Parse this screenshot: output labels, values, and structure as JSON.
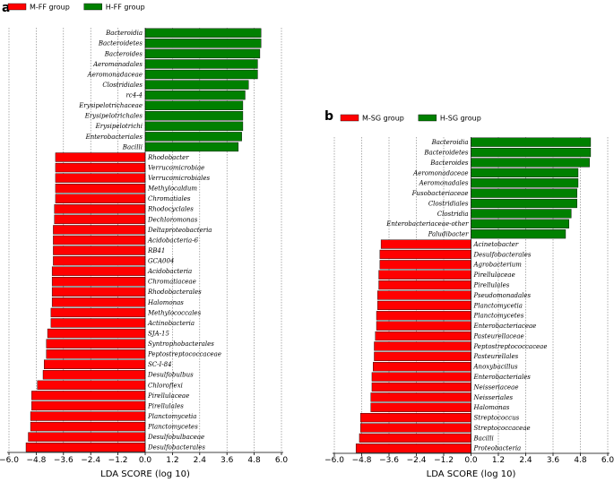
{
  "chart_data": [
    {
      "type": "bar",
      "orientation": "horizontal",
      "panel": "a",
      "legend": [
        {
          "name": "M-FF group",
          "color": "#ff0000"
        },
        {
          "name": "H-FF group",
          "color": "#008000"
        }
      ],
      "xlabel": "LDA SCORE (log 10)",
      "xlim": [
        -6.0,
        6.0
      ],
      "xticks": [
        "-6.0",
        "-4.8",
        "-3.6",
        "-2.4",
        "-1.2",
        "0.0",
        "1.2",
        "2.4",
        "3.6",
        "4.8",
        "6.0"
      ],
      "series": [
        {
          "name": "H-FF group",
          "color": "#008000",
          "categories": [
            "Bacteroidia",
            "Bacteroidetes",
            "Bacteroides",
            "Aeromonadales",
            "Aeromonadaceae",
            "Clostridiales",
            "rc4-4",
            "Erysipelotrichaceae",
            "Erysipelotrichales",
            "Erysipelotrichi",
            "Enterobacteriales",
            "Bacilli"
          ],
          "values": [
            5.1,
            5.1,
            5.05,
            4.95,
            4.95,
            4.55,
            4.4,
            4.3,
            4.3,
            4.3,
            4.25,
            4.1
          ]
        },
        {
          "name": "M-FF group",
          "color": "#ff0000",
          "categories": [
            "Rhodobacter",
            "Verrucomicrobiae",
            "Verrucomicrobiales",
            "Methylocaldum",
            "Chromatiales",
            "Rhodocyclales",
            "Dechloromonas",
            "Deltaproteobacteria",
            "Acidobacteria-6",
            "RB41",
            "GCA004",
            "Acidobacteria",
            "Chromatiaceae",
            "Rhodobacterales",
            "Halomonas",
            "Methylococcales",
            "Actinobacteria",
            "SJA-15",
            "Syntrophobacterales",
            "Peptostreptococcaceae",
            "SC-I-84",
            "Desulfobulbus",
            "Chloroflexi",
            "Pirellulaceae",
            "Pirellulales",
            "Planctomycetia",
            "Planctomycetes",
            "Desulfobulbaceae",
            "Desulfobacterales"
          ],
          "values": [
            -3.95,
            -3.95,
            -3.95,
            -3.95,
            -3.95,
            -4.0,
            -4.0,
            -4.05,
            -4.05,
            -4.05,
            -4.05,
            -4.1,
            -4.1,
            -4.1,
            -4.1,
            -4.15,
            -4.15,
            -4.3,
            -4.35,
            -4.35,
            -4.45,
            -4.5,
            -4.75,
            -5.0,
            -5.0,
            -5.05,
            -5.05,
            -5.15,
            -5.25
          ]
        }
      ]
    },
    {
      "type": "bar",
      "orientation": "horizontal",
      "panel": "b",
      "legend": [
        {
          "name": "M-SG group",
          "color": "#ff0000"
        },
        {
          "name": "H-SG group",
          "color": "#008000"
        }
      ],
      "xlabel": "LDA SCORE (log 10)",
      "xlim": [
        -6.0,
        6.0
      ],
      "xticks": [
        "-6.0",
        "-4.8",
        "-3.6",
        "-2.4",
        "-1.2",
        "0.0",
        "1.2",
        "2.4",
        "3.6",
        "4.8",
        "6.0"
      ],
      "series": [
        {
          "name": "H-SG group",
          "color": "#008000",
          "categories": [
            "Bacteroidia",
            "Bacteroidetes",
            "Bacteroides",
            "Aeromonadaceae",
            "Aeromonadales",
            "Fusobacteriaceae",
            "Clostridiales",
            "Clostridia",
            "Enterobacteriaceae-other",
            "Paludibacter"
          ],
          "values": [
            5.25,
            5.25,
            5.2,
            4.7,
            4.7,
            4.65,
            4.65,
            4.4,
            4.3,
            4.15
          ]
        },
        {
          "name": "M-SG group",
          "color": "#ff0000",
          "categories": [
            "Acinetobacter",
            "Desulfobacterales",
            "Agrobacterium",
            "Pirellulaceae",
            "Pirellulales",
            "Pseudomonadales",
            "Planctomycetia",
            "Planctomycetes",
            "Enterobacteriaceae",
            "Pasteurellaceae",
            "Peptostreptococcaceae",
            "Pasteurellales",
            "Anoxybacillus",
            "Enterobacteriales",
            "Neisseriaceae",
            "Neisseriales",
            "Halomonas",
            "Streptococcus",
            "Streptococcaceae",
            "Bacilli",
            "Proteobacteria"
          ],
          "values": [
            -3.95,
            -4.0,
            -4.0,
            -4.05,
            -4.05,
            -4.1,
            -4.1,
            -4.15,
            -4.15,
            -4.2,
            -4.25,
            -4.25,
            -4.3,
            -4.35,
            -4.35,
            -4.4,
            -4.4,
            -4.85,
            -4.85,
            -4.9,
            -5.05
          ]
        }
      ]
    }
  ]
}
